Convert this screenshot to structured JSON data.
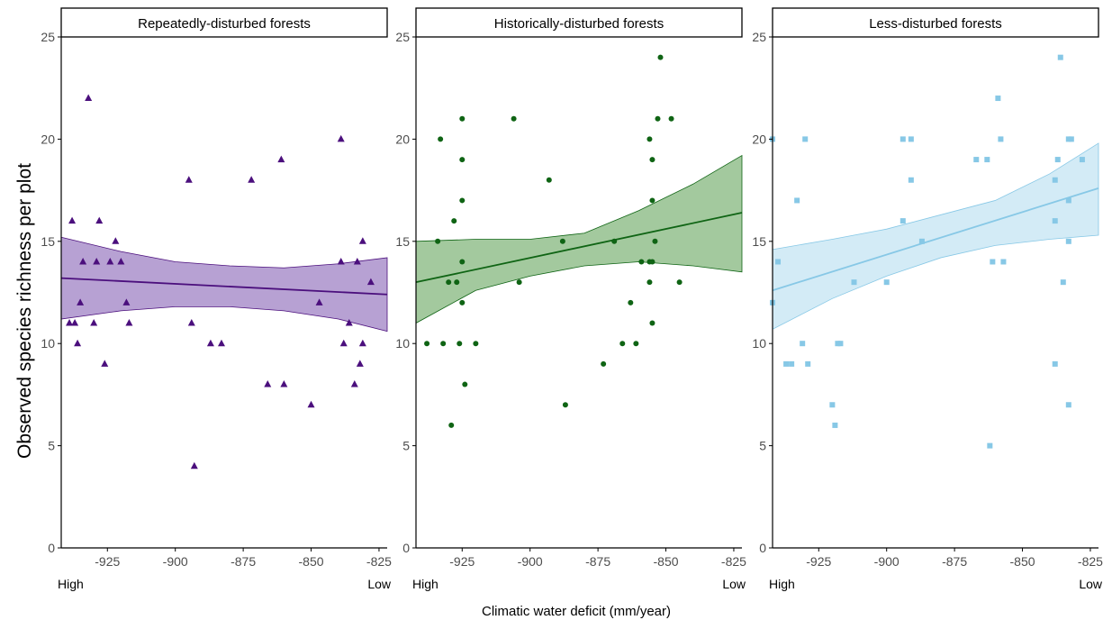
{
  "figure": {
    "ylabel": "Observed species richness  per plot",
    "xlabel": "Climatic water deficit (mm/year)"
  },
  "chart_data": [
    {
      "type": "scatter",
      "title": "Repeatedly-disturbed forests",
      "marker": "triangle",
      "color": "#4b0f7d",
      "fill_color": "#b7a1d3",
      "xlim": [
        -942,
        -822
      ],
      "ylim": [
        0,
        25
      ],
      "xticks": [
        -925,
        -900,
        -875,
        -850,
        -825
      ],
      "yticks": [
        0,
        5,
        10,
        15,
        20,
        25
      ],
      "x_end_labels": [
        "High",
        "Low"
      ],
      "points": [
        [
          -939,
          11
        ],
        [
          -938,
          16
        ],
        [
          -937,
          11
        ],
        [
          -936,
          10
        ],
        [
          -935,
          12
        ],
        [
          -934,
          14
        ],
        [
          -932,
          22
        ],
        [
          -930,
          11
        ],
        [
          -929,
          14
        ],
        [
          -928,
          16
        ],
        [
          -926,
          9
        ],
        [
          -924,
          14
        ],
        [
          -922,
          15
        ],
        [
          -920,
          14
        ],
        [
          -918,
          12
        ],
        [
          -917,
          11
        ],
        [
          -895,
          18
        ],
        [
          -894,
          11
        ],
        [
          -893,
          4
        ],
        [
          -887,
          10
        ],
        [
          -883,
          10
        ],
        [
          -872,
          18
        ],
        [
          -866,
          8
        ],
        [
          -861,
          19
        ],
        [
          -860,
          8
        ],
        [
          -850,
          7
        ],
        [
          -847,
          12
        ],
        [
          -839,
          14
        ],
        [
          -839,
          20
        ],
        [
          -838,
          10
        ],
        [
          -836,
          11
        ],
        [
          -834,
          8
        ],
        [
          -833,
          14
        ],
        [
          -832,
          9
        ],
        [
          -831,
          15
        ],
        [
          -831,
          10
        ],
        [
          -828,
          13
        ]
      ],
      "fit": {
        "x": [
          -942,
          -822
        ],
        "y": [
          13.2,
          12.4
        ]
      },
      "ci": {
        "x": [
          -942,
          -920,
          -900,
          -880,
          -860,
          -840,
          -822
        ],
        "lower": [
          11.2,
          11.6,
          11.8,
          11.8,
          11.6,
          11.2,
          10.6
        ],
        "upper": [
          15.2,
          14.5,
          14.0,
          13.8,
          13.7,
          13.9,
          14.2
        ]
      }
    },
    {
      "type": "scatter",
      "title": "Historically-disturbed forests",
      "marker": "circle",
      "color": "#0f6414",
      "fill_color": "#a3c99e",
      "xlim": [
        -942,
        -822
      ],
      "ylim": [
        0,
        25
      ],
      "xticks": [
        -925,
        -900,
        -875,
        -850,
        -825
      ],
      "yticks": [
        0,
        5,
        10,
        15,
        20,
        25
      ],
      "x_end_labels": [
        "High",
        "Low"
      ],
      "points": [
        [
          -938,
          10
        ],
        [
          -934,
          15
        ],
        [
          -933,
          20
        ],
        [
          -932,
          10
        ],
        [
          -930,
          13
        ],
        [
          -929,
          6
        ],
        [
          -927,
          13
        ],
        [
          -928,
          16
        ],
        [
          -926,
          10
        ],
        [
          -925,
          12
        ],
        [
          -925,
          14
        ],
        [
          -925,
          17
        ],
        [
          -925,
          19
        ],
        [
          -925,
          21
        ],
        [
          -924,
          8
        ],
        [
          -920,
          10
        ],
        [
          -906,
          21
        ],
        [
          -904,
          13
        ],
        [
          -893,
          18
        ],
        [
          -888,
          15
        ],
        [
          -887,
          7
        ],
        [
          -873,
          9
        ],
        [
          -869,
          15
        ],
        [
          -866,
          10
        ],
        [
          -863,
          12
        ],
        [
          -861,
          10
        ],
        [
          -859,
          14
        ],
        [
          -856,
          14
        ],
        [
          -856,
          13
        ],
        [
          -856,
          20
        ],
        [
          -855,
          17
        ],
        [
          -855,
          19
        ],
        [
          -855,
          14
        ],
        [
          -855,
          11
        ],
        [
          -854,
          15
        ],
        [
          -853,
          21
        ],
        [
          -852,
          24
        ],
        [
          -848,
          21
        ],
        [
          -845,
          13
        ]
      ],
      "fit": {
        "x": [
          -942,
          -822
        ],
        "y": [
          13.0,
          16.4
        ]
      },
      "ci": {
        "x": [
          -942,
          -920,
          -900,
          -880,
          -860,
          -840,
          -822
        ],
        "lower": [
          11.0,
          12.6,
          13.3,
          13.8,
          14.0,
          13.8,
          13.5
        ],
        "upper": [
          15.0,
          15.1,
          15.1,
          15.4,
          16.5,
          17.8,
          19.2
        ]
      }
    },
    {
      "type": "scatter",
      "title": "Less-disturbed forests",
      "marker": "square",
      "color": "#87c8e6",
      "fill_color": "#d3ebf6",
      "xlim": [
        -942,
        -822
      ],
      "ylim": [
        0,
        25
      ],
      "xticks": [
        -925,
        -900,
        -875,
        -850,
        -825
      ],
      "yticks": [
        0,
        5,
        10,
        15,
        20,
        25
      ],
      "x_end_labels": [
        "High",
        "Low"
      ],
      "points": [
        [
          -942,
          20
        ],
        [
          -942,
          12
        ],
        [
          -940,
          14
        ],
        [
          -937,
          9
        ],
        [
          -935,
          9
        ],
        [
          -933,
          17
        ],
        [
          -931,
          10
        ],
        [
          -930,
          20
        ],
        [
          -929,
          9
        ],
        [
          -920,
          7
        ],
        [
          -919,
          6
        ],
        [
          -918,
          10
        ],
        [
          -917,
          10
        ],
        [
          -912,
          13
        ],
        [
          -900,
          13
        ],
        [
          -894,
          20
        ],
        [
          -894,
          16
        ],
        [
          -891,
          20
        ],
        [
          -891,
          18
        ],
        [
          -887,
          15
        ],
        [
          -867,
          19
        ],
        [
          -863,
          19
        ],
        [
          -862,
          5
        ],
        [
          -861,
          14
        ],
        [
          -859,
          22
        ],
        [
          -858,
          20
        ],
        [
          -857,
          14
        ],
        [
          -838,
          9
        ],
        [
          -838,
          16
        ],
        [
          -838,
          18
        ],
        [
          -837,
          19
        ],
        [
          -836,
          24
        ],
        [
          -835,
          13
        ],
        [
          -833,
          7
        ],
        [
          -833,
          15
        ],
        [
          -833,
          17
        ],
        [
          -833,
          20
        ],
        [
          -832,
          20
        ],
        [
          -828,
          19
        ]
      ],
      "fit": {
        "x": [
          -942,
          -822
        ],
        "y": [
          12.6,
          17.6
        ]
      },
      "ci": {
        "x": [
          -942,
          -920,
          -900,
          -880,
          -860,
          -840,
          -822
        ],
        "lower": [
          10.7,
          12.2,
          13.3,
          14.2,
          14.8,
          15.1,
          15.3
        ],
        "upper": [
          14.6,
          15.1,
          15.6,
          16.3,
          17.0,
          18.3,
          19.8
        ]
      }
    }
  ]
}
